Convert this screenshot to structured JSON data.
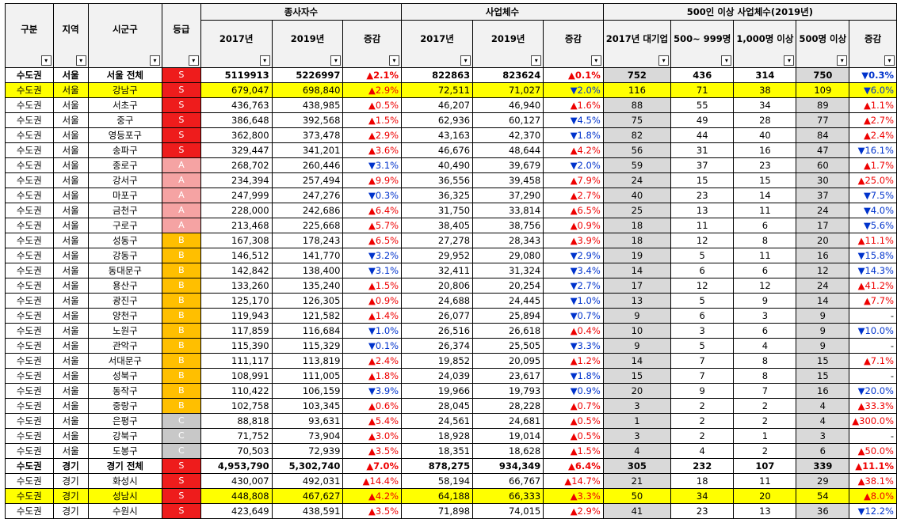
{
  "headers": {
    "gubun": "구분",
    "region": "지역",
    "city": "시군구",
    "grade": "등급",
    "employees_group": "종사자수",
    "business_group": "사업체수",
    "large_group": "500인 이상 사업체수(2019년)",
    "y2017": "2017년",
    "y2019": "2019년",
    "change": "증감",
    "large_2017": "2017년 대기업",
    "large_500": "500~ 999명",
    "large_1000": "1,000명 이상",
    "large_500plus": "500명 이상",
    "filter_glyph": "▾"
  },
  "colors": {
    "grade_S": "#ee1c1c",
    "grade_A": "#f5a3a3",
    "grade_B": "#ffbf00",
    "grade_C": "#c8c8c8",
    "highlight": "#ffff00",
    "up": "#ee0000",
    "down": "#0033cc"
  },
  "rows": [
    {
      "type": "total",
      "gubun": "수도권",
      "region": "서울",
      "city": "서울 전체",
      "grade": "S",
      "emp17": "5119913",
      "emp19": "5226997",
      "empchg": "▲2.1%",
      "biz17": "822863",
      "biz19": "823624",
      "bizchg": "▲0.1%",
      "l17": "752",
      "l500": "436",
      "l1000": "314",
      "l500p": "750",
      "lchg": "▼0.3%"
    },
    {
      "type": "hl",
      "gubun": "수도권",
      "region": "서울",
      "city": "강남구",
      "grade": "S",
      "emp17": "679,047",
      "emp19": "698,840",
      "empchg": "▲2.9%",
      "biz17": "72,511",
      "biz19": "71,027",
      "bizchg": "▼2.0%",
      "l17": "116",
      "l500": "71",
      "l1000": "38",
      "l500p": "109",
      "lchg": "▼6.0%"
    },
    {
      "gubun": "수도권",
      "region": "서울",
      "city": "서초구",
      "grade": "S",
      "emp17": "436,763",
      "emp19": "438,985",
      "empchg": "▲0.5%",
      "biz17": "46,207",
      "biz19": "46,940",
      "bizchg": "▲1.6%",
      "l17": "88",
      "l500": "55",
      "l1000": "34",
      "l500p": "89",
      "lchg": "▲1.1%"
    },
    {
      "gubun": "수도권",
      "region": "서울",
      "city": "중구",
      "grade": "S",
      "emp17": "386,648",
      "emp19": "392,568",
      "empchg": "▲1.5%",
      "biz17": "62,936",
      "biz19": "60,127",
      "bizchg": "▼4.5%",
      "l17": "75",
      "l500": "49",
      "l1000": "28",
      "l500p": "77",
      "lchg": "▲2.7%"
    },
    {
      "gubun": "수도권",
      "region": "서울",
      "city": "영등포구",
      "grade": "S",
      "emp17": "362,800",
      "emp19": "373,478",
      "empchg": "▲2.9%",
      "biz17": "43,163",
      "biz19": "42,370",
      "bizchg": "▼1.8%",
      "l17": "82",
      "l500": "44",
      "l1000": "40",
      "l500p": "84",
      "lchg": "▲2.4%"
    },
    {
      "gubun": "수도권",
      "region": "서울",
      "city": "송파구",
      "grade": "S",
      "emp17": "329,447",
      "emp19": "341,201",
      "empchg": "▲3.6%",
      "biz17": "46,676",
      "biz19": "48,644",
      "bizchg": "▲4.2%",
      "l17": "56",
      "l500": "31",
      "l1000": "16",
      "l500p": "47",
      "lchg": "▼16.1%"
    },
    {
      "gubun": "수도권",
      "region": "서울",
      "city": "종로구",
      "grade": "A",
      "emp17": "268,702",
      "emp19": "260,446",
      "empchg": "▼3.1%",
      "biz17": "40,490",
      "biz19": "39,679",
      "bizchg": "▼2.0%",
      "l17": "59",
      "l500": "37",
      "l1000": "23",
      "l500p": "60",
      "lchg": "▲1.7%"
    },
    {
      "gubun": "수도권",
      "region": "서울",
      "city": "강서구",
      "grade": "A",
      "emp17": "234,394",
      "emp19": "257,494",
      "empchg": "▲9.9%",
      "biz17": "36,556",
      "biz19": "39,458",
      "bizchg": "▲7.9%",
      "l17": "24",
      "l500": "15",
      "l1000": "15",
      "l500p": "30",
      "lchg": "▲25.0%"
    },
    {
      "gubun": "수도권",
      "region": "서울",
      "city": "마포구",
      "grade": "A",
      "emp17": "247,999",
      "emp19": "247,276",
      "empchg": "▼0.3%",
      "biz17": "36,325",
      "biz19": "37,290",
      "bizchg": "▲2.7%",
      "l17": "40",
      "l500": "23",
      "l1000": "14",
      "l500p": "37",
      "lchg": "▼7.5%"
    },
    {
      "gubun": "수도권",
      "region": "서울",
      "city": "금천구",
      "grade": "A",
      "emp17": "228,000",
      "emp19": "242,686",
      "empchg": "▲6.4%",
      "biz17": "31,750",
      "biz19": "33,814",
      "bizchg": "▲6.5%",
      "l17": "25",
      "l500": "13",
      "l1000": "11",
      "l500p": "24",
      "lchg": "▼4.0%"
    },
    {
      "gubun": "수도권",
      "region": "서울",
      "city": "구로구",
      "grade": "A",
      "emp17": "213,468",
      "emp19": "225,668",
      "empchg": "▲5.7%",
      "biz17": "38,405",
      "biz19": "38,756",
      "bizchg": "▲0.9%",
      "l17": "18",
      "l500": "11",
      "l1000": "6",
      "l500p": "17",
      "lchg": "▼5.6%"
    },
    {
      "gubun": "수도권",
      "region": "서울",
      "city": "성동구",
      "grade": "B",
      "emp17": "167,308",
      "emp19": "178,243",
      "empchg": "▲6.5%",
      "biz17": "27,278",
      "biz19": "28,343",
      "bizchg": "▲3.9%",
      "l17": "18",
      "l500": "12",
      "l1000": "8",
      "l500p": "20",
      "lchg": "▲11.1%"
    },
    {
      "gubun": "수도권",
      "region": "서울",
      "city": "강동구",
      "grade": "B",
      "emp17": "146,512",
      "emp19": "141,770",
      "empchg": "▼3.2%",
      "biz17": "29,952",
      "biz19": "29,080",
      "bizchg": "▼2.9%",
      "l17": "19",
      "l500": "5",
      "l1000": "11",
      "l500p": "16",
      "lchg": "▼15.8%"
    },
    {
      "gubun": "수도권",
      "region": "서울",
      "city": "동대문구",
      "grade": "B",
      "emp17": "142,842",
      "emp19": "138,400",
      "empchg": "▼3.1%",
      "biz17": "32,411",
      "biz19": "31,324",
      "bizchg": "▼3.4%",
      "l17": "14",
      "l500": "6",
      "l1000": "6",
      "l500p": "12",
      "lchg": "▼14.3%"
    },
    {
      "gubun": "수도권",
      "region": "서울",
      "city": "용산구",
      "grade": "B",
      "emp17": "133,260",
      "emp19": "135,240",
      "empchg": "▲1.5%",
      "biz17": "20,806",
      "biz19": "20,254",
      "bizchg": "▼2.7%",
      "l17": "17",
      "l500": "12",
      "l1000": "12",
      "l500p": "24",
      "lchg": "▲41.2%"
    },
    {
      "gubun": "수도권",
      "region": "서울",
      "city": "광진구",
      "grade": "B",
      "emp17": "125,170",
      "emp19": "126,305",
      "empchg": "▲0.9%",
      "biz17": "24,688",
      "biz19": "24,445",
      "bizchg": "▼1.0%",
      "l17": "13",
      "l500": "5",
      "l1000": "9",
      "l500p": "14",
      "lchg": "▲7.7%"
    },
    {
      "gubun": "수도권",
      "region": "서울",
      "city": "양천구",
      "grade": "B",
      "emp17": "119,943",
      "emp19": "121,582",
      "empchg": "▲1.4%",
      "biz17": "26,077",
      "biz19": "25,894",
      "bizchg": "▼0.7%",
      "l17": "9",
      "l500": "6",
      "l1000": "3",
      "l500p": "9",
      "lchg": "-"
    },
    {
      "gubun": "수도권",
      "region": "서울",
      "city": "노원구",
      "grade": "B",
      "emp17": "117,859",
      "emp19": "116,684",
      "empchg": "▼1.0%",
      "biz17": "26,516",
      "biz19": "26,618",
      "bizchg": "▲0.4%",
      "l17": "10",
      "l500": "3",
      "l1000": "6",
      "l500p": "9",
      "lchg": "▼10.0%"
    },
    {
      "gubun": "수도권",
      "region": "서울",
      "city": "관악구",
      "grade": "B",
      "emp17": "115,390",
      "emp19": "115,329",
      "empchg": "▼0.1%",
      "biz17": "26,374",
      "biz19": "25,505",
      "bizchg": "▼3.3%",
      "l17": "9",
      "l500": "5",
      "l1000": "4",
      "l500p": "9",
      "lchg": "-"
    },
    {
      "gubun": "수도권",
      "region": "서울",
      "city": "서대문구",
      "grade": "B",
      "emp17": "111,117",
      "emp19": "113,819",
      "empchg": "▲2.4%",
      "biz17": "19,852",
      "biz19": "20,095",
      "bizchg": "▲1.2%",
      "l17": "14",
      "l500": "7",
      "l1000": "8",
      "l500p": "15",
      "lchg": "▲7.1%"
    },
    {
      "gubun": "수도권",
      "region": "서울",
      "city": "성북구",
      "grade": "B",
      "emp17": "108,991",
      "emp19": "111,005",
      "empchg": "▲1.8%",
      "biz17": "24,039",
      "biz19": "23,617",
      "bizchg": "▼1.8%",
      "l17": "15",
      "l500": "7",
      "l1000": "8",
      "l500p": "15",
      "lchg": "-"
    },
    {
      "gubun": "수도권",
      "region": "서울",
      "city": "동작구",
      "grade": "B",
      "emp17": "110,422",
      "emp19": "106,159",
      "empchg": "▼3.9%",
      "biz17": "19,966",
      "biz19": "19,793",
      "bizchg": "▼0.9%",
      "l17": "20",
      "l500": "9",
      "l1000": "7",
      "l500p": "16",
      "lchg": "▼20.0%"
    },
    {
      "gubun": "수도권",
      "region": "서울",
      "city": "중랑구",
      "grade": "B",
      "emp17": "102,758",
      "emp19": "103,345",
      "empchg": "▲0.6%",
      "biz17": "28,045",
      "biz19": "28,228",
      "bizchg": "▲0.7%",
      "l17": "3",
      "l500": "2",
      "l1000": "2",
      "l500p": "4",
      "lchg": "▲33.3%"
    },
    {
      "gubun": "수도권",
      "region": "서울",
      "city": "은평구",
      "grade": "C",
      "emp17": "88,818",
      "emp19": "93,631",
      "empchg": "▲5.4%",
      "biz17": "24,561",
      "biz19": "24,681",
      "bizchg": "▲0.5%",
      "l17": "1",
      "l500": "2",
      "l1000": "2",
      "l500p": "4",
      "lchg": "▲300.0%"
    },
    {
      "gubun": "수도권",
      "region": "서울",
      "city": "강북구",
      "grade": "C",
      "emp17": "71,752",
      "emp19": "73,904",
      "empchg": "▲3.0%",
      "biz17": "18,928",
      "biz19": "19,014",
      "bizchg": "▲0.5%",
      "l17": "3",
      "l500": "2",
      "l1000": "1",
      "l500p": "3",
      "lchg": "-"
    },
    {
      "gubun": "수도권",
      "region": "서울",
      "city": "도봉구",
      "grade": "C",
      "emp17": "70,503",
      "emp19": "72,939",
      "empchg": "▲3.5%",
      "biz17": "18,351",
      "biz19": "18,628",
      "bizchg": "▲1.5%",
      "l17": "4",
      "l500": "4",
      "l1000": "2",
      "l500p": "6",
      "lchg": "▲50.0%"
    },
    {
      "type": "total",
      "gubun": "수도권",
      "region": "경기",
      "city": "경기 전체",
      "grade": "S",
      "emp17": "4,953,790",
      "emp19": "5,302,740",
      "empchg": "▲7.0%",
      "biz17": "878,275",
      "biz19": "934,349",
      "bizchg": "▲6.4%",
      "l17": "305",
      "l500": "232",
      "l1000": "107",
      "l500p": "339",
      "lchg": "▲11.1%"
    },
    {
      "gubun": "수도권",
      "region": "경기",
      "city": "화성시",
      "grade": "S",
      "emp17": "430,007",
      "emp19": "492,031",
      "empchg": "▲14.4%",
      "biz17": "58,194",
      "biz19": "66,767",
      "bizchg": "▲14.7%",
      "l17": "21",
      "l500": "18",
      "l1000": "11",
      "l500p": "29",
      "lchg": "▲38.1%"
    },
    {
      "type": "hl",
      "gubun": "수도권",
      "region": "경기",
      "city": "성남시",
      "grade": "S",
      "emp17": "448,808",
      "emp19": "467,627",
      "empchg": "▲4.2%",
      "biz17": "64,188",
      "biz19": "66,333",
      "bizchg": "▲3.3%",
      "l17": "50",
      "l500": "34",
      "l1000": "20",
      "l500p": "54",
      "lchg": "▲8.0%"
    },
    {
      "gubun": "수도권",
      "region": "경기",
      "city": "수원시",
      "grade": "S",
      "emp17": "423,649",
      "emp19": "438,591",
      "empchg": "▲3.5%",
      "biz17": "71,898",
      "biz19": "74,015",
      "bizchg": "▲2.9%",
      "l17": "41",
      "l500": "23",
      "l1000": "13",
      "l500p": "36",
      "lchg": "▼12.2%"
    }
  ]
}
